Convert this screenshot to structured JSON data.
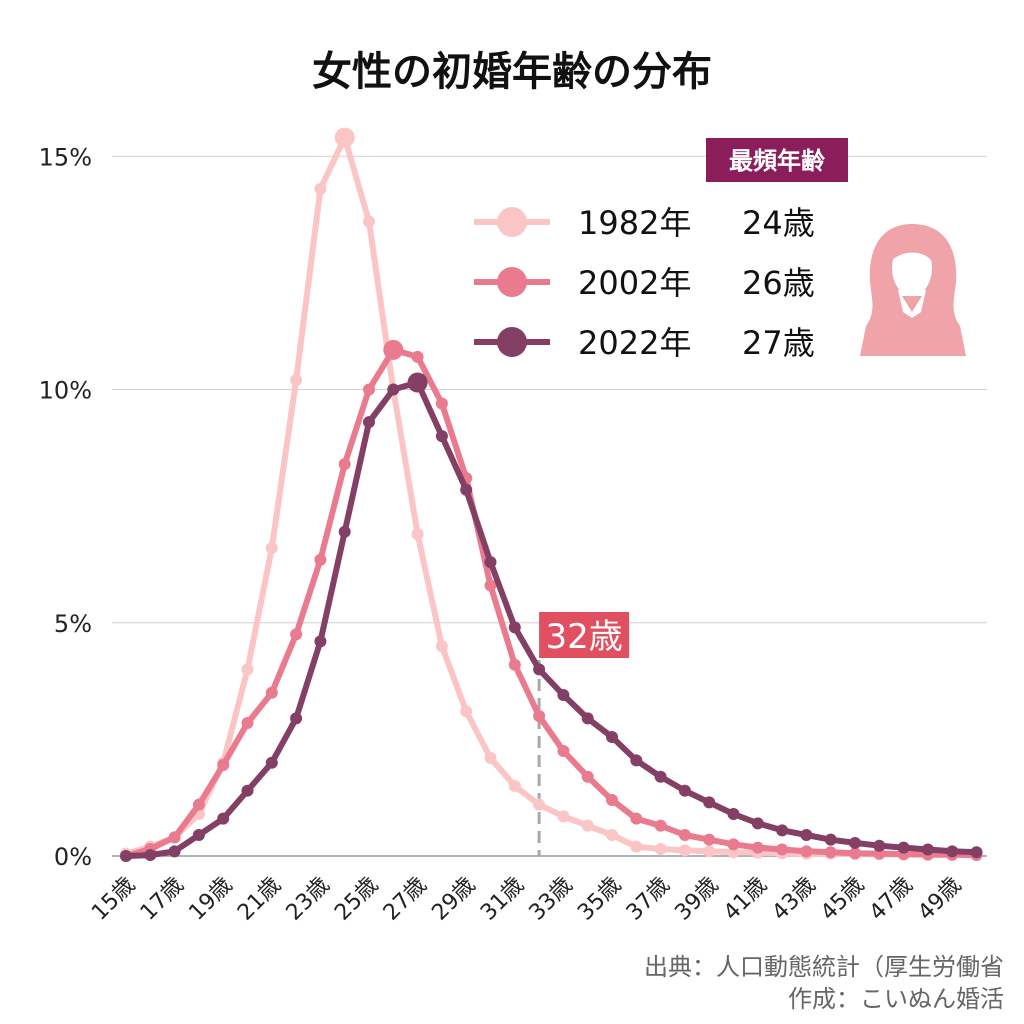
{
  "chart_data": {
    "type": "line",
    "title": "女性の初婚年齢の分布",
    "categories": [
      "15歳",
      "16歳",
      "17歳",
      "18歳",
      "19歳",
      "20歳",
      "21歳",
      "22歳",
      "23歳",
      "24歳",
      "25歳",
      "26歳",
      "27歳",
      "28歳",
      "29歳",
      "30歳",
      "31歳",
      "32歳",
      "33歳",
      "34歳",
      "35歳",
      "36歳",
      "37歳",
      "38歳",
      "39歳",
      "40歳",
      "41歳",
      "42歳",
      "43歳",
      "44歳",
      "45歳",
      "46歳",
      "47歳",
      "48歳",
      "49歳",
      "50歳"
    ],
    "tick_labels": [
      "15歳",
      "17歳",
      "19歳",
      "21歳",
      "23歳",
      "25歳",
      "27歳",
      "29歳",
      "31歳",
      "33歳",
      "35歳",
      "37歳",
      "39歳",
      "41歳",
      "43歳",
      "45歳",
      "47歳",
      "49歳"
    ],
    "y_ticks": [
      "0%",
      "5%",
      "10%",
      "15%"
    ],
    "ylim": [
      0,
      15.5
    ],
    "grid": true,
    "legend_position": "top-right",
    "legend_header": "最頻年齢",
    "series": [
      {
        "name": "1982年",
        "mode_label": "24歳",
        "mode_index": 9,
        "color": "#fcc5c5",
        "values": [
          0.05,
          0.2,
          0.4,
          0.9,
          2.0,
          4.0,
          6.6,
          10.2,
          14.3,
          15.4,
          13.6,
          10.0,
          6.9,
          4.5,
          3.1,
          2.1,
          1.5,
          1.1,
          0.85,
          0.65,
          0.45,
          0.2,
          0.15,
          0.12,
          0.1,
          0.08,
          0.07,
          0.06,
          0.05,
          0.05,
          0.04,
          0.04,
          0.03,
          0.03,
          0.02,
          0.02
        ]
      },
      {
        "name": "2002年",
        "mode_label": "26歳",
        "mode_index": 11,
        "color": "#ea7b8e",
        "values": [
          0.0,
          0.15,
          0.4,
          1.1,
          1.95,
          2.85,
          3.5,
          4.75,
          6.35,
          8.4,
          10.0,
          10.85,
          10.7,
          9.7,
          8.1,
          5.8,
          4.1,
          3.0,
          2.25,
          1.7,
          1.2,
          0.8,
          0.65,
          0.45,
          0.35,
          0.25,
          0.18,
          0.14,
          0.1,
          0.08,
          0.06,
          0.05,
          0.04,
          0.03,
          0.03,
          0.02
        ]
      },
      {
        "name": "2022年",
        "mode_label": "27歳",
        "mode_index": 12,
        "color": "#843f65",
        "values": [
          0.0,
          0.02,
          0.1,
          0.45,
          0.8,
          1.4,
          2.0,
          2.95,
          4.6,
          6.95,
          9.3,
          10.0,
          10.15,
          9.0,
          7.85,
          6.3,
          4.9,
          4.0,
          3.45,
          2.95,
          2.55,
          2.05,
          1.7,
          1.4,
          1.15,
          0.9,
          0.7,
          0.55,
          0.45,
          0.35,
          0.28,
          0.22,
          0.18,
          0.14,
          0.1,
          0.08
        ]
      }
    ],
    "annotation": {
      "label": "32歳",
      "index": 17,
      "color": "#e05060"
    }
  },
  "legend_icon": "woman-icon",
  "source_lines": [
    "出典：人口動態統計（厚生労働省",
    "作成：こいぬん婚活"
  ]
}
